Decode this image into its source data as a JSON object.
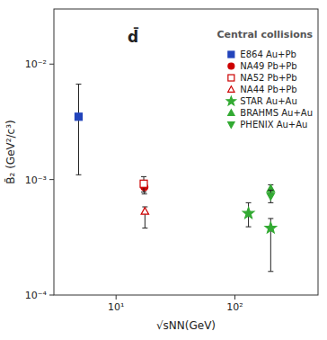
{
  "chart_data": {
    "type": "scatter",
    "title": "d̄",
    "subtitle": "Central collisions",
    "x_label": "√sNN(GeV)",
    "y_label": "B̄₂ (GeV²/c³)",
    "log": true,
    "grid": false,
    "legend": "upper right",
    "xlim": [
      3.0,
      500
    ],
    "ylim": [
      0.0001,
      0.03
    ],
    "xticks": [
      {
        "value": 10,
        "label": "10¹"
      },
      {
        "value": 100,
        "label": "10²"
      }
    ],
    "yticks": [
      {
        "value": 0.0001,
        "label": "10⁻⁴"
      },
      {
        "value": 0.001,
        "label": "10⁻³"
      },
      {
        "value": 0.01,
        "label": "10⁻²"
      }
    ],
    "series": [
      {
        "name": "E864 Au+Pb",
        "color": "#2244bb",
        "marker": "square",
        "x": [
          4.84
        ],
        "values": [
          0.0035
        ],
        "yerr_lo": [
          0.0024
        ],
        "yerr_hi": [
          0.0032
        ]
      },
      {
        "name": "NA49 Pb+Pb",
        "color": "#cc0000",
        "marker": "circle",
        "x": [
          17.3
        ],
        "values": [
          0.00086
        ],
        "yerr_lo": [
          0.00011
        ],
        "yerr_hi": [
          0.00011
        ]
      },
      {
        "name": "NA52 Pb+Pb",
        "color": "#cc0000",
        "marker": "square-open",
        "x": [
          17.1
        ],
        "values": [
          0.00092
        ],
        "yerr_lo": [
          0.00014
        ],
        "yerr_hi": [
          0.00014
        ]
      },
      {
        "name": "NA44 Pb+Pb",
        "color": "#cc0000",
        "marker": "triangle-up-open",
        "x": [
          17.5
        ],
        "values": [
          0.00053
        ],
        "yerr_lo": [
          0.00015
        ],
        "yerr_hi": [
          5e-05
        ]
      },
      {
        "name": "STAR Au+Au",
        "color": "#33aa33",
        "marker": "star",
        "x": [
          130,
          200
        ],
        "values": [
          0.00051,
          0.00038
        ],
        "yerr_lo": [
          0.00012,
          0.00022
        ],
        "yerr_hi": [
          0.00012,
          8e-05
        ]
      },
      {
        "name": "BRAHMS Au+Au",
        "color": "#33aa33",
        "marker": "triangle-up",
        "x": [
          200
        ],
        "values": [
          0.00083
        ],
        "yerr_lo": [
          7e-05
        ],
        "yerr_hi": [
          7e-05
        ]
      },
      {
        "name": "PHENIX Au+Au",
        "color": "#33aa33",
        "marker": "triangle-down",
        "x": [
          200
        ],
        "values": [
          0.00072
        ],
        "yerr_lo": [
          9e-05
        ],
        "yerr_hi": [
          9e-05
        ]
      }
    ]
  }
}
